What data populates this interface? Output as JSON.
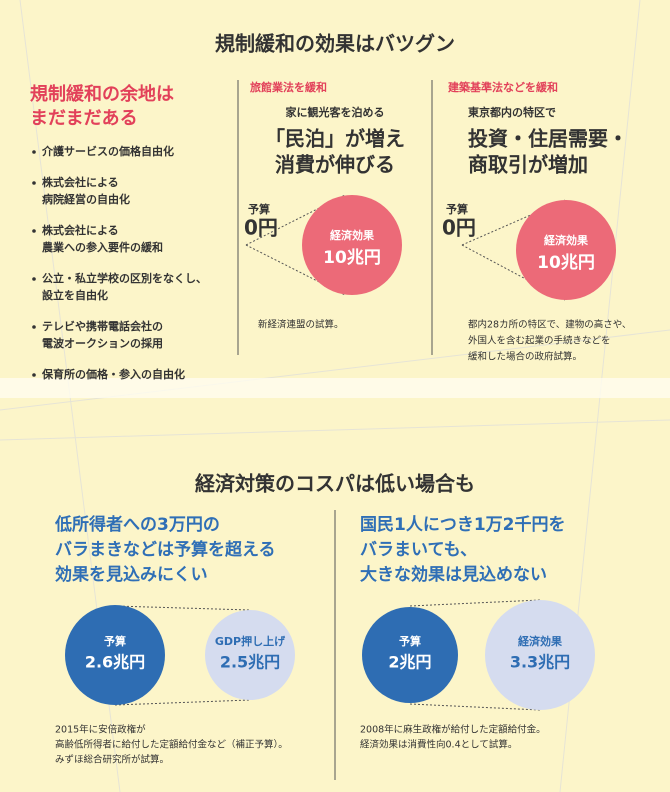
{
  "top": {
    "title": "規制緩和の効果はバツグン",
    "left": {
      "heading": [
        "規制緩和の余地は",
        "まだまだある"
      ],
      "items": [
        [
          "介護サービスの価格自由化"
        ],
        [
          "株式会社による",
          "病院経営の自由化"
        ],
        [
          "株式会社による",
          "農業への参入要件の緩和"
        ],
        [
          "公立・私立学校の区別をなくし、",
          "設立を自由化"
        ],
        [
          "テレビや携帯電話会社の",
          "電波オークションの採用"
        ],
        [
          "保育所の価格・参入の自由化"
        ]
      ]
    },
    "middle": {
      "tag": "旅館業法を緩和",
      "lead": "家に観光客を泊める",
      "headline": [
        "「民泊」が増え",
        "消費が伸びる"
      ],
      "budget_label": "予算",
      "budget": "0円",
      "effect_label": "経済効果",
      "effect": "10兆円",
      "note": [
        "新経済連盟の試算。"
      ]
    },
    "right": {
      "tag": "建築基準法などを緩和",
      "lead": "東京都内の特区で",
      "headline": [
        "投資・住居需要・",
        "商取引が増加"
      ],
      "budget_label": "予算",
      "budget": "0円",
      "effect_label": "経済効果",
      "effect": "10兆円",
      "note": [
        "都内28カ所の特区で、建物の高さや、",
        "外国人を含む起業の手続きなどを",
        "緩和した場合の政府試算。"
      ]
    }
  },
  "bottom": {
    "title": "経済対策のコスパは低い場合も",
    "left": {
      "heading": [
        "低所得者への3万円の",
        "バラまきなどは予算を超える",
        "効果を見込みにくい"
      ],
      "budget_label": "予算",
      "budget": "2.6兆円",
      "effect_label": "GDP押し上げ",
      "effect": "2.5兆円",
      "note": [
        "2015年に安倍政権が",
        "高齢低所得者に給付した定額給付金など（補正予算）。",
        "みずほ総合研究所が試算。"
      ]
    },
    "right": {
      "heading": [
        "国民1人につき1万2千円を",
        "バラまいても、",
        "大きな効果は見込めない"
      ],
      "budget_label": "予算",
      "budget": "2兆円",
      "effect_label": "経済効果",
      "effect": "3.3兆円",
      "note": [
        "2008年に麻生政権が給付した定額給付金。",
        "経済効果は消費性向0.4として試算。"
      ]
    }
  }
}
